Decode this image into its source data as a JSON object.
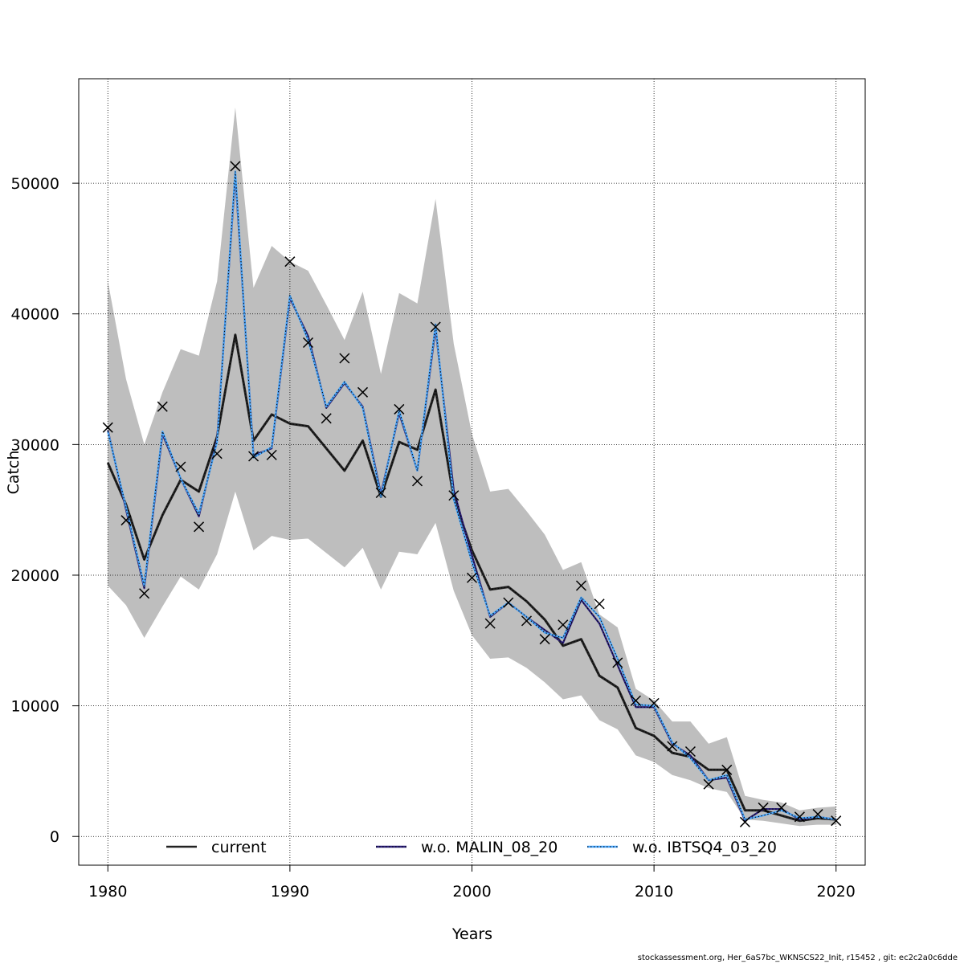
{
  "footer": "stockassessment.org, Her_6aS7bc_WKNSCS22_Init, r15452 , git: ec2c2a0c6dde",
  "colors": {
    "band": "#bebebe",
    "current": "#222222",
    "malin": "#2b1f7a",
    "ibts": "#4aa8ff",
    "observed": "#000000",
    "grid": "#000000"
  },
  "chart_data": {
    "type": "line",
    "title": "",
    "xlabel": "Years",
    "ylabel": "Catch",
    "xlim": [
      1978.4,
      2021.6
    ],
    "ylim": [
      -2200,
      58000
    ],
    "xticks": [
      1980,
      1990,
      2000,
      2010,
      2020
    ],
    "yticks": [
      0,
      10000,
      20000,
      30000,
      40000,
      50000
    ],
    "grid": true,
    "legend_position": "bottom",
    "legend": [
      {
        "name": "current",
        "series": "current"
      },
      {
        "name": "w.o. MALIN_08_20",
        "series": "malin"
      },
      {
        "name": "w.o. IBTSQ4_03_20",
        "series": "ibts"
      }
    ],
    "x": [
      1980,
      1981,
      1982,
      1983,
      1984,
      1985,
      1986,
      1987,
      1988,
      1989,
      1990,
      1991,
      1992,
      1993,
      1994,
      1995,
      1996,
      1997,
      1998,
      1999,
      2000,
      2001,
      2002,
      2003,
      2004,
      2005,
      2006,
      2007,
      2008,
      2009,
      2010,
      2011,
      2012,
      2013,
      2014,
      2015,
      2016,
      2017,
      2018,
      2019,
      2020
    ],
    "band_upper": [
      42500,
      35000,
      30000,
      34000,
      37300,
      36800,
      42500,
      55800,
      42000,
      45200,
      44000,
      43300,
      40700,
      38000,
      41700,
      35400,
      41600,
      40800,
      48800,
      37700,
      30800,
      26400,
      26600,
      24900,
      23100,
      20400,
      21000,
      17000,
      16000,
      11300,
      10400,
      8800,
      8800,
      7100,
      7600,
      3100,
      2800,
      2600,
      2000,
      2200,
      2300
    ],
    "band_lower": [
      19200,
      17700,
      15200,
      17600,
      19900,
      18900,
      21600,
      26400,
      21900,
      23000,
      22700,
      22800,
      21700,
      20600,
      22100,
      18900,
      21800,
      21600,
      24000,
      18800,
      15400,
      13600,
      13700,
      12900,
      11800,
      10500,
      10800,
      8900,
      8200,
      6200,
      5700,
      4700,
      4300,
      3700,
      3400,
      1300,
      1200,
      1000,
      800,
      900,
      900
    ],
    "series": [
      {
        "key": "current",
        "values": [
          28600,
          25400,
          21200,
          24600,
          27300,
          26400,
          30600,
          38400,
          30300,
          32300,
          31600,
          31400,
          29700,
          28000,
          30300,
          26000,
          30200,
          29600,
          34200,
          25900,
          21900,
          18900,
          19100,
          18000,
          16600,
          14600,
          15100,
          12300,
          11400,
          8300,
          7700,
          6400,
          6100,
          5100,
          5100,
          2000,
          2000,
          1600,
          1200,
          1400,
          1300
        ]
      },
      {
        "key": "malin",
        "values": [
          31100,
          25000,
          19000,
          30800,
          27400,
          24500,
          30400,
          50600,
          29200,
          29700,
          41200,
          38300,
          32800,
          34700,
          32900,
          26200,
          32400,
          28000,
          38900,
          26500,
          21500,
          16800,
          17900,
          16800,
          15800,
          14800,
          18100,
          16300,
          13100,
          9900,
          9900,
          7100,
          6200,
          4300,
          4500,
          1200,
          2100,
          2100,
          1300,
          1500,
          1300
        ]
      },
      {
        "key": "ibts",
        "values": [
          31000,
          25200,
          19200,
          31000,
          27400,
          24700,
          30200,
          50900,
          29000,
          29800,
          41400,
          38000,
          32900,
          34800,
          32800,
          26000,
          32600,
          28000,
          39200,
          25800,
          21000,
          16900,
          17900,
          16800,
          15600,
          15200,
          18300,
          16800,
          13600,
          10100,
          10000,
          7200,
          6000,
          4300,
          4700,
          1300,
          1600,
          2000,
          1400,
          1500,
          1300
        ]
      }
    ],
    "observed": [
      31300,
      24200,
      18600,
      32900,
      28300,
      23700,
      29300,
      51300,
      29100,
      29200,
      44000,
      37800,
      32000,
      36600,
      34000,
      26300,
      32700,
      27200,
      39000,
      26100,
      19800,
      16300,
      17900,
      16500,
      15100,
      16200,
      19200,
      17800,
      13300,
      10400,
      10200,
      6900,
      6500,
      4000,
      5100,
      1100,
      2200,
      2200,
      1500,
      1700,
      1200
    ]
  }
}
